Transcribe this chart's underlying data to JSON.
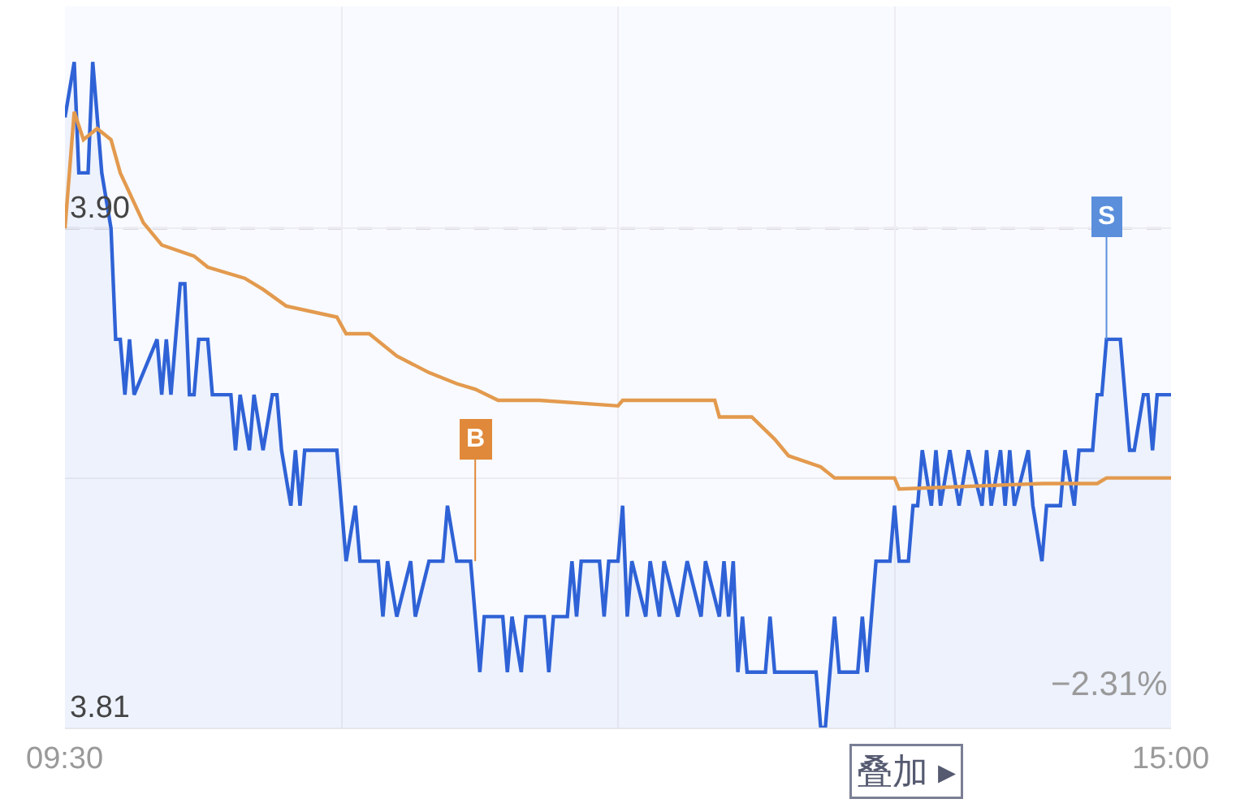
{
  "chart_data": {
    "type": "line",
    "xlim": [
      9.5,
      15
    ],
    "xticks": [
      {
        "value": 9.5,
        "label": "09:30"
      },
      {
        "value": 10.875,
        "label": null
      },
      {
        "value": 12.25,
        "label": null
      },
      {
        "value": 13.625,
        "label": null
      },
      {
        "value": 15,
        "label": "15:00"
      }
    ],
    "ylim": [
      3.81,
      3.94
    ],
    "yticks": [
      {
        "value": 3.81,
        "label": "3.81"
      },
      {
        "value": 3.855,
        "label": null
      },
      {
        "value": 3.9,
        "label": "3.90"
      }
    ],
    "grid": true,
    "ref_lines": [
      {
        "axis": "y",
        "value": 3.9,
        "color": "#d0d0d0",
        "line_style": "dashed"
      }
    ],
    "series": [
      {
        "type": "area",
        "color": "#2f62d6",
        "x": [
          9.5,
          9.546,
          9.569,
          9.615,
          9.638,
          9.683,
          9.729,
          9.752,
          9.775,
          9.798,
          9.821,
          9.844,
          9.958,
          9.981,
          10.004,
          10.027,
          10.073,
          10.096,
          10.119,
          10.142,
          10.165,
          10.21,
          10.233,
          10.325,
          10.348,
          10.371,
          10.417,
          10.44,
          10.485,
          10.531,
          10.554,
          10.577,
          10.623,
          10.646,
          10.669,
          10.692,
          10.852,
          10.898,
          10.944,
          10.967,
          11.058,
          11.081,
          11.104,
          11.15,
          11.219,
          11.242,
          11.31,
          11.379,
          11.402,
          11.448,
          11.517,
          11.563,
          11.585,
          11.677,
          11.7,
          11.723,
          11.769,
          11.792,
          11.883,
          11.906,
          11.929,
          11.998,
          12.021,
          12.044,
          12.067,
          12.158,
          12.181,
          12.204,
          12.25,
          12.273,
          12.296,
          12.319,
          12.388,
          12.41,
          12.456,
          12.479,
          12.548,
          12.594,
          12.663,
          12.685,
          12.754,
          12.777,
          12.8,
          12.823,
          12.846,
          12.869,
          12.892,
          12.983,
          13.006,
          13.029,
          13.235,
          13.258,
          13.281,
          13.327,
          13.35,
          13.442,
          13.465,
          13.488,
          13.533,
          13.602,
          13.625,
          13.648,
          13.694,
          13.717,
          13.74,
          13.763,
          13.808,
          13.831,
          13.854,
          13.9,
          13.946,
          13.992,
          14.06,
          14.083,
          14.106,
          14.152,
          14.175,
          14.198,
          14.221,
          14.29,
          14.313,
          14.358,
          14.381,
          14.45,
          14.473,
          14.519,
          14.542,
          14.61,
          14.633,
          14.656,
          14.679,
          14.748,
          14.794,
          14.817,
          14.863,
          14.885,
          14.908,
          14.931,
          15
        ],
        "values": [
          3.92,
          3.93,
          3.91,
          3.91,
          3.93,
          3.91,
          3.9,
          3.88,
          3.88,
          3.87,
          3.88,
          3.87,
          3.88,
          3.87,
          3.88,
          3.87,
          3.89,
          3.89,
          3.87,
          3.87,
          3.88,
          3.88,
          3.87,
          3.87,
          3.86,
          3.87,
          3.86,
          3.87,
          3.86,
          3.87,
          3.87,
          3.86,
          3.85,
          3.86,
          3.85,
          3.86,
          3.86,
          3.84,
          3.85,
          3.84,
          3.84,
          3.83,
          3.84,
          3.83,
          3.84,
          3.83,
          3.84,
          3.84,
          3.85,
          3.84,
          3.84,
          3.82,
          3.83,
          3.83,
          3.82,
          3.83,
          3.82,
          3.83,
          3.83,
          3.82,
          3.83,
          3.83,
          3.84,
          3.83,
          3.84,
          3.84,
          3.83,
          3.84,
          3.84,
          3.85,
          3.83,
          3.84,
          3.83,
          3.84,
          3.83,
          3.84,
          3.83,
          3.84,
          3.83,
          3.84,
          3.83,
          3.84,
          3.83,
          3.84,
          3.82,
          3.83,
          3.82,
          3.82,
          3.83,
          3.82,
          3.82,
          3.81,
          3.81,
          3.83,
          3.82,
          3.82,
          3.83,
          3.82,
          3.84,
          3.84,
          3.85,
          3.84,
          3.84,
          3.85,
          3.85,
          3.86,
          3.85,
          3.86,
          3.85,
          3.86,
          3.85,
          3.86,
          3.85,
          3.86,
          3.85,
          3.86,
          3.85,
          3.86,
          3.85,
          3.86,
          3.85,
          3.84,
          3.85,
          3.85,
          3.86,
          3.85,
          3.86,
          3.86,
          3.87,
          3.87,
          3.88,
          3.88,
          3.86,
          3.86,
          3.87,
          3.87,
          3.86,
          3.87,
          3.87
        ]
      },
      {
        "color": "#e39a4e",
        "x": [
          9.5,
          9.546,
          9.592,
          9.66,
          9.729,
          9.775,
          9.89,
          9.981,
          10.142,
          10.21,
          10.394,
          10.485,
          10.6,
          10.852,
          10.898,
          11.013,
          11.15,
          11.31,
          11.448,
          11.54,
          11.654,
          11.86,
          12.25,
          12.273,
          12.731,
          12.754,
          12.915,
          13.029,
          13.098,
          13.258,
          13.327,
          13.373,
          13.625,
          13.648,
          14.358,
          14.633,
          14.679,
          15
        ],
        "values": [
          3.9,
          3.921,
          3.916,
          3.918,
          3.916,
          3.91,
          3.901,
          3.897,
          3.895,
          3.893,
          3.891,
          3.889,
          3.886,
          3.884,
          3.881,
          3.881,
          3.877,
          3.874,
          3.872,
          3.871,
          3.869,
          3.869,
          3.868,
          3.869,
          3.869,
          3.866,
          3.866,
          3.862,
          3.859,
          3.857,
          3.855,
          3.855,
          3.855,
          3.853,
          3.854,
          3.854,
          3.855,
          3.855
        ]
      }
    ],
    "annotations": [
      {
        "text": "B",
        "x": 11.54,
        "y": 3.84
      },
      {
        "text": "S",
        "x": 14.679,
        "y": 3.88
      },
      "−2.31%",
      "叠加 ▸"
    ]
  }
}
